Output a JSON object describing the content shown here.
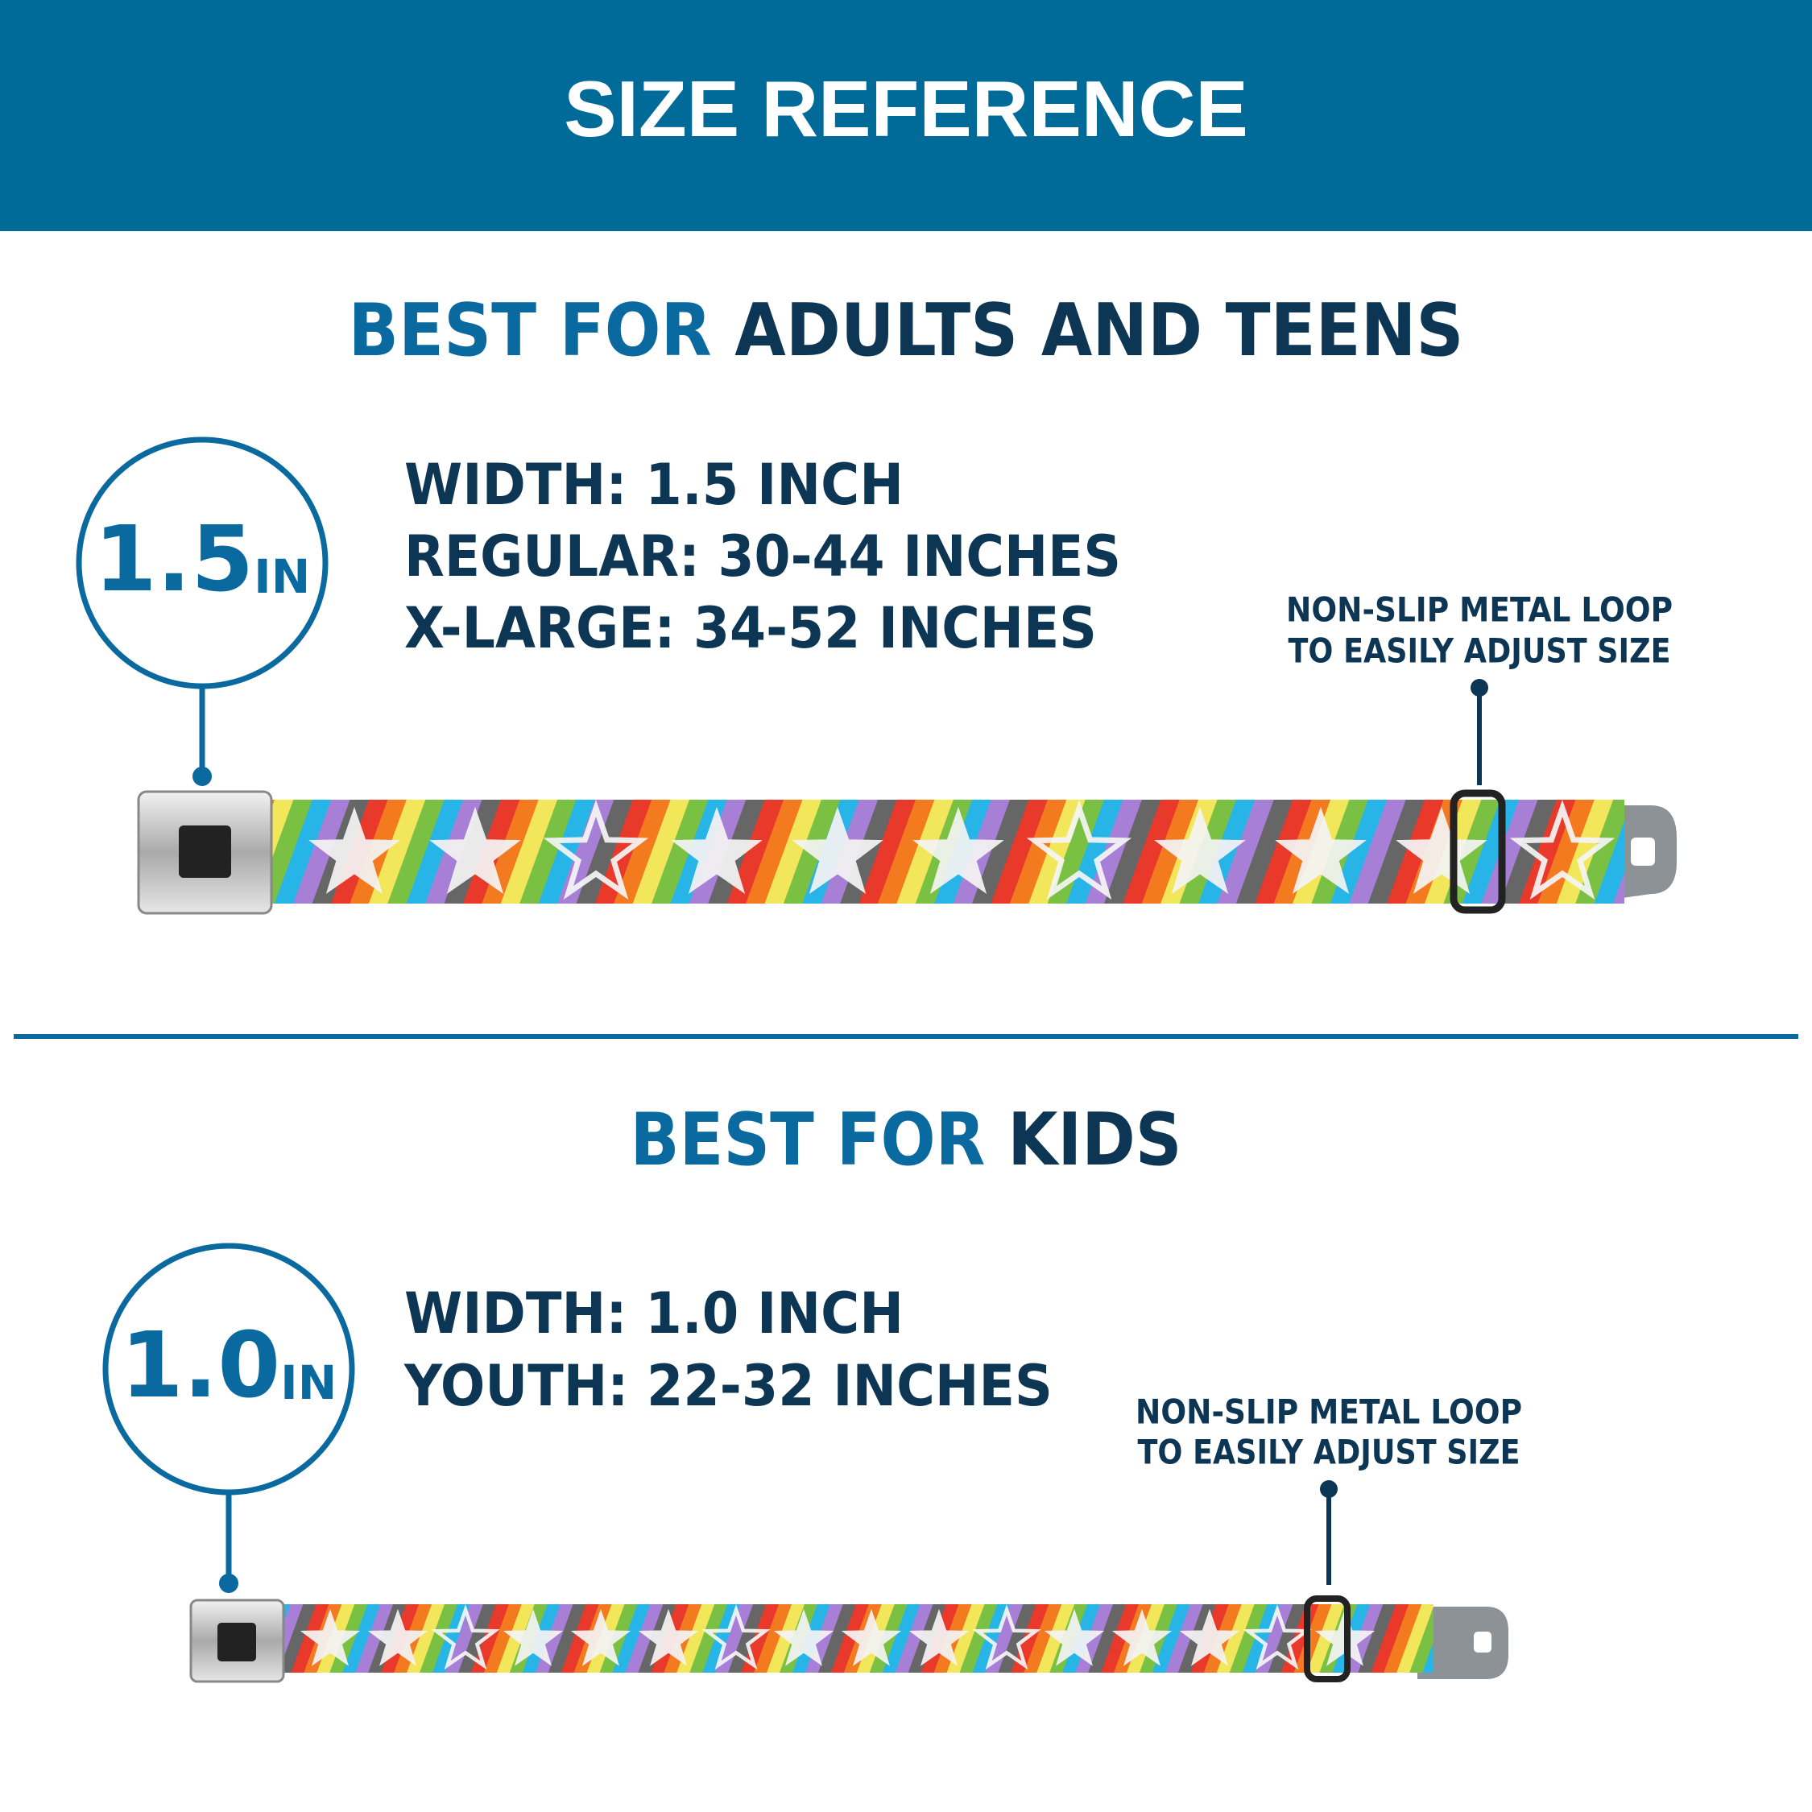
{
  "header": {
    "title": "SIZE REFERENCE"
  },
  "sections": [
    {
      "heading": {
        "lead": "BEST FOR",
        "rest": "ADULTS AND TEENS"
      },
      "badge": {
        "number": "1.5",
        "unit": "IN"
      },
      "specs": [
        "WIDTH: 1.5 INCH",
        "REGULAR: 30-44 INCHES",
        "X-LARGE: 34-52 INCHES"
      ],
      "callout": [
        "NON-SLIP METAL LOOP",
        "TO EASILY ADJUST SIZE"
      ]
    },
    {
      "heading": {
        "lead": "BEST FOR",
        "rest": "KIDS"
      },
      "badge": {
        "number": "1.0",
        "unit": "IN"
      },
      "specs": [
        "WIDTH: 1.0 INCH",
        "YOUTH: 22-32 INCHES"
      ],
      "callout": [
        "NON-SLIP METAL LOOP",
        "TO EASILY ADJUST SIZE"
      ]
    }
  ]
}
